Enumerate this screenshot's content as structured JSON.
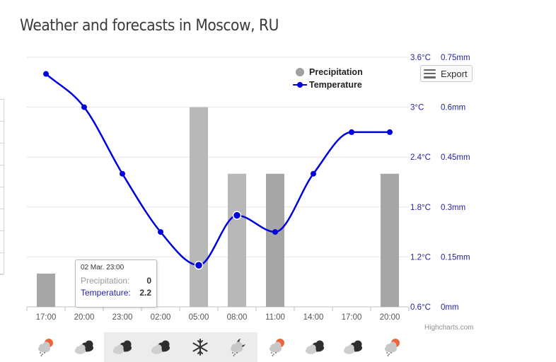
{
  "title": "Weather and forecasts in Moscow, RU",
  "legend": {
    "items": [
      {
        "label": "Precipitation",
        "color": "#a0a0a0"
      },
      {
        "label": "Temperature",
        "color": "#0000dd"
      }
    ]
  },
  "export_label": "Export",
  "credits": "Highcharts.com",
  "tooltip": {
    "date": "02 Mar. 23:00",
    "precip_label": "Precipitation:",
    "precip_value": "0",
    "temp_label": "Temperature:",
    "temp_value": "2.2"
  },
  "colors": {
    "temperature": "#0000dd",
    "precip_bar": "#a6a6a6",
    "precip_bar_light": "#b8b8b8",
    "axis_text": "#1f1f9e",
    "night_bg": "#ececec"
  },
  "chart_data": {
    "type": "bar",
    "categories": [
      "17:00",
      "20:00",
      "23:00",
      "02:00",
      "05:00",
      "08:00",
      "11:00",
      "14:00",
      "17:00",
      "20:00"
    ],
    "series": [
      {
        "name": "Precipitation",
        "type": "bar",
        "unit": "mm",
        "values": [
          0.1,
          0,
          0,
          0,
          0.6,
          0.4,
          0.4,
          0,
          0,
          0.4
        ]
      },
      {
        "name": "Temperature",
        "type": "line",
        "unit": "°C",
        "values": [
          3.4,
          3.0,
          2.2,
          1.5,
          1.1,
          1.7,
          1.5,
          2.2,
          2.7,
          2.7
        ]
      }
    ],
    "temperature_axis": {
      "ticks": [
        "3.6°C",
        "3°C",
        "2.4°C",
        "1.8°C",
        "1.2°C",
        "0.6°C"
      ],
      "min": 0.6,
      "max": 3.6
    },
    "precipitation_axis": {
      "ticks": [
        "0.75mm",
        "0.6mm",
        "0.45mm",
        "0.3mm",
        "0.15mm",
        "0mm"
      ],
      "min": 0,
      "max": 0.75
    },
    "grid": true,
    "legend_position": "top-right",
    "x_axis_position": "bottom",
    "y_axis_position": "right"
  },
  "weather_icons": [
    {
      "icon": "cloud-sun-rain-icon",
      "night": false
    },
    {
      "icon": "cloud-dark-icon",
      "night": false
    },
    {
      "icon": "cloud-dark-icon",
      "night": true
    },
    {
      "icon": "cloud-dark-icon",
      "night": true
    },
    {
      "icon": "snowflake-icon",
      "night": true
    },
    {
      "icon": "cloud-moon-rain-icon",
      "night": true
    },
    {
      "icon": "cloud-sun-rain-icon",
      "night": false
    },
    {
      "icon": "cloud-dark-icon",
      "night": false
    },
    {
      "icon": "cloud-dark-icon",
      "night": false
    },
    {
      "icon": "cloud-sun-rain-icon",
      "night": false
    }
  ]
}
